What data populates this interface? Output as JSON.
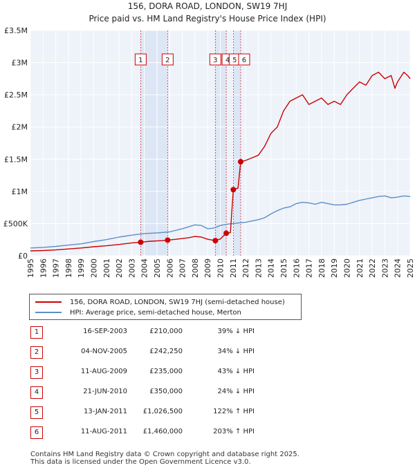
{
  "chart_data": {
    "type": "line",
    "title": "156, DORA ROAD, LONDON, SW19 7HJ",
    "subtitle": "Price paid vs. HM Land Registry's House Price Index (HPI)",
    "xlabel": "",
    "ylabel": "",
    "xlim": [
      1995.0,
      2025.0
    ],
    "ylim": [
      0,
      3500000
    ],
    "x_ticks": [
      1995,
      1996,
      1997,
      1998,
      1999,
      2000,
      2001,
      2002,
      2003,
      2004,
      2005,
      2006,
      2007,
      2008,
      2009,
      2010,
      2011,
      2012,
      2013,
      2014,
      2015,
      2016,
      2017,
      2018,
      2019,
      2020,
      2021,
      2022,
      2023,
      2024,
      2025
    ],
    "y_ticks": [
      {
        "value": 0,
        "label": "£0"
      },
      {
        "value": 500000,
        "label": "£500K"
      },
      {
        "value": 1000000,
        "label": "£1M"
      },
      {
        "value": 1500000,
        "label": "£1.5M"
      },
      {
        "value": 2000000,
        "label": "£2M"
      },
      {
        "value": 2500000,
        "label": "£2.5M"
      },
      {
        "value": 3000000,
        "label": "£3M"
      },
      {
        "value": 3500000,
        "label": "£3.5M"
      }
    ],
    "grid": true,
    "legend_position": "bottom-left",
    "series": [
      {
        "name": "156, DORA ROAD, LONDON, SW19 7HJ (semi-detached house)",
        "color": "#cc0000",
        "x": [
          1995.0,
          1996.0,
          1997.0,
          1998.0,
          1999.0,
          2000.0,
          2001.0,
          2002.0,
          2003.0,
          2003.71,
          2004.5,
          2005.5,
          2005.84,
          2006.5,
          2007.5,
          2008.0,
          2008.5,
          2009.0,
          2009.61,
          2010.0,
          2010.47,
          2010.8,
          2011.03,
          2011.2,
          2011.4,
          2011.61,
          2012.0,
          2012.5,
          2013.0,
          2013.5,
          2014.0,
          2014.5,
          2015.0,
          2015.5,
          2016.0,
          2016.5,
          2017.0,
          2017.5,
          2018.0,
          2018.5,
          2019.0,
          2019.5,
          2020.0,
          2020.5,
          2021.0,
          2021.5,
          2022.0,
          2022.5,
          2023.0,
          2023.5,
          2023.8,
          2024.0,
          2024.5,
          2024.8,
          2025.0
        ],
        "y": [
          75000,
          80000,
          90000,
          105000,
          120000,
          140000,
          155000,
          175000,
          200000,
          210000,
          225000,
          235000,
          242250,
          255000,
          280000,
          300000,
          290000,
          255000,
          235000,
          260000,
          350000,
          360000,
          1026500,
          1040000,
          1050000,
          1460000,
          1480000,
          1520000,
          1560000,
          1700000,
          1900000,
          2000000,
          2250000,
          2400000,
          2450000,
          2500000,
          2350000,
          2400000,
          2450000,
          2350000,
          2400000,
          2350000,
          2500000,
          2600000,
          2700000,
          2650000,
          2800000,
          2850000,
          2750000,
          2800000,
          2600000,
          2700000,
          2850000,
          2800000,
          2750000
        ]
      },
      {
        "name": "HPI: Average price, semi-detached house, Merton",
        "color": "#5b8ec8",
        "x": [
          1995.0,
          1996.0,
          1997.0,
          1998.0,
          1999.0,
          2000.0,
          2001.0,
          2002.0,
          2003.0,
          2004.0,
          2005.0,
          2006.0,
          2007.0,
          2008.0,
          2008.5,
          2009.0,
          2009.5,
          2010.0,
          2010.5,
          2011.0,
          2011.5,
          2012.0,
          2012.5,
          2013.0,
          2013.5,
          2014.0,
          2014.5,
          2015.0,
          2015.5,
          2016.0,
          2016.5,
          2017.0,
          2017.5,
          2018.0,
          2018.5,
          2019.0,
          2019.5,
          2020.0,
          2020.5,
          2021.0,
          2021.5,
          2022.0,
          2022.5,
          2023.0,
          2023.5,
          2024.0,
          2024.5,
          2025.0
        ],
        "y": [
          120000,
          130000,
          145000,
          165000,
          185000,
          220000,
          250000,
          290000,
          320000,
          345000,
          355000,
          370000,
          420000,
          480000,
          470000,
          420000,
          430000,
          470000,
          490000,
          500000,
          510000,
          520000,
          540000,
          560000,
          590000,
          650000,
          700000,
          740000,
          760000,
          810000,
          830000,
          820000,
          800000,
          830000,
          810000,
          790000,
          790000,
          800000,
          830000,
          860000,
          880000,
          900000,
          920000,
          930000,
          900000,
          910000,
          930000,
          920000
        ]
      }
    ],
    "transactions": [
      {
        "n": "1",
        "x": 2003.71,
        "price": 210000
      },
      {
        "n": "2",
        "x": 2005.84,
        "price": 242250
      },
      {
        "n": "3",
        "x": 2009.61,
        "price": 235000
      },
      {
        "n": "4",
        "x": 2010.47,
        "price": 350000
      },
      {
        "n": "5",
        "x": 2011.03,
        "price": 1026500
      },
      {
        "n": "6",
        "x": 2011.61,
        "price": 1460000
      }
    ],
    "shaded_bands": [
      [
        2003.71,
        2005.84
      ],
      [
        2009.61,
        2010.47
      ],
      [
        2011.03,
        2011.61
      ]
    ]
  },
  "legend": {
    "items": [
      {
        "label": "156, DORA ROAD, LONDON, SW19 7HJ (semi-detached house)",
        "color": "#cc0000"
      },
      {
        "label": "HPI: Average price, semi-detached house, Merton",
        "color": "#5b8ec8"
      }
    ]
  },
  "table": {
    "rows": [
      {
        "n": "1",
        "date": "16-SEP-2003",
        "price": "£210,000",
        "hpi": "39% ↓ HPI"
      },
      {
        "n": "2",
        "date": "04-NOV-2005",
        "price": "£242,250",
        "hpi": "34% ↓ HPI"
      },
      {
        "n": "3",
        "date": "11-AUG-2009",
        "price": "£235,000",
        "hpi": "43% ↓ HPI"
      },
      {
        "n": "4",
        "date": "21-JUN-2010",
        "price": "£350,000",
        "hpi": "24% ↓ HPI"
      },
      {
        "n": "5",
        "date": "13-JAN-2011",
        "price": "£1,026,500",
        "hpi": "122% ↑ HPI"
      },
      {
        "n": "6",
        "date": "11-AUG-2011",
        "price": "£1,460,000",
        "hpi": "203% ↑ HPI"
      }
    ]
  },
  "footer": {
    "line1": "Contains HM Land Registry data © Crown copyright and database right 2025.",
    "line2": "This data is licensed under the Open Government Licence v3.0."
  }
}
